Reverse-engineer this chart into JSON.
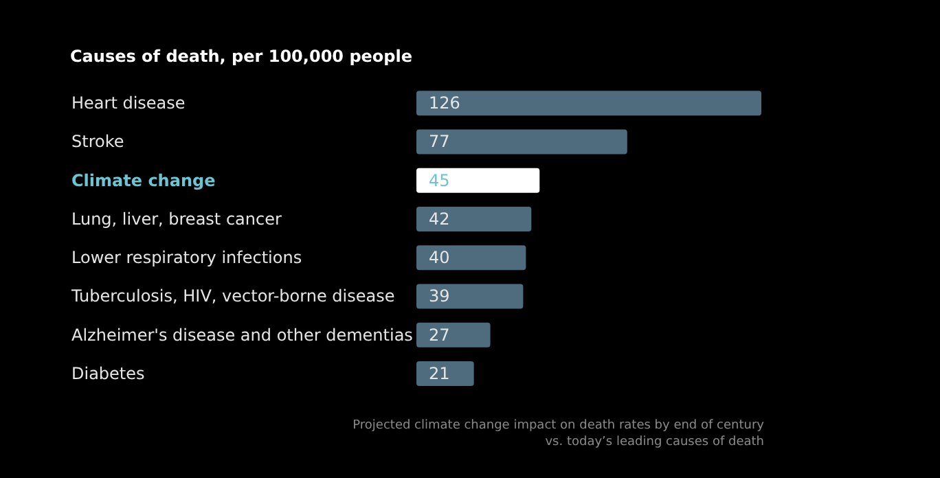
{
  "chart_data": {
    "type": "bar",
    "orientation": "horizontal",
    "title": "Causes of death, per 100,000 people",
    "categories": [
      "Heart disease",
      "Stroke",
      "Climate change",
      "Lung, liver, breast cancer",
      "Lower respiratory infections",
      "Tuberculosis, HIV, vector-borne disease",
      "Alzheimer's disease and other dementias",
      "Diabetes"
    ],
    "values": [
      126,
      77,
      45,
      42,
      40,
      39,
      27,
      21
    ],
    "colors": [
      "#4f6b7e",
      "#4f6b7e",
      "#ffffff",
      "#4f6b7e",
      "#4f6b7e",
      "#4f6b7e",
      "#4f6b7e",
      "#4f6b7e"
    ],
    "data_labels": true,
    "tick_labels": "y",
    "annotations": [
      "Projected climate change impact on death rates by end of century\nvs. today’s leading causes of death"
    ]
  }
}
